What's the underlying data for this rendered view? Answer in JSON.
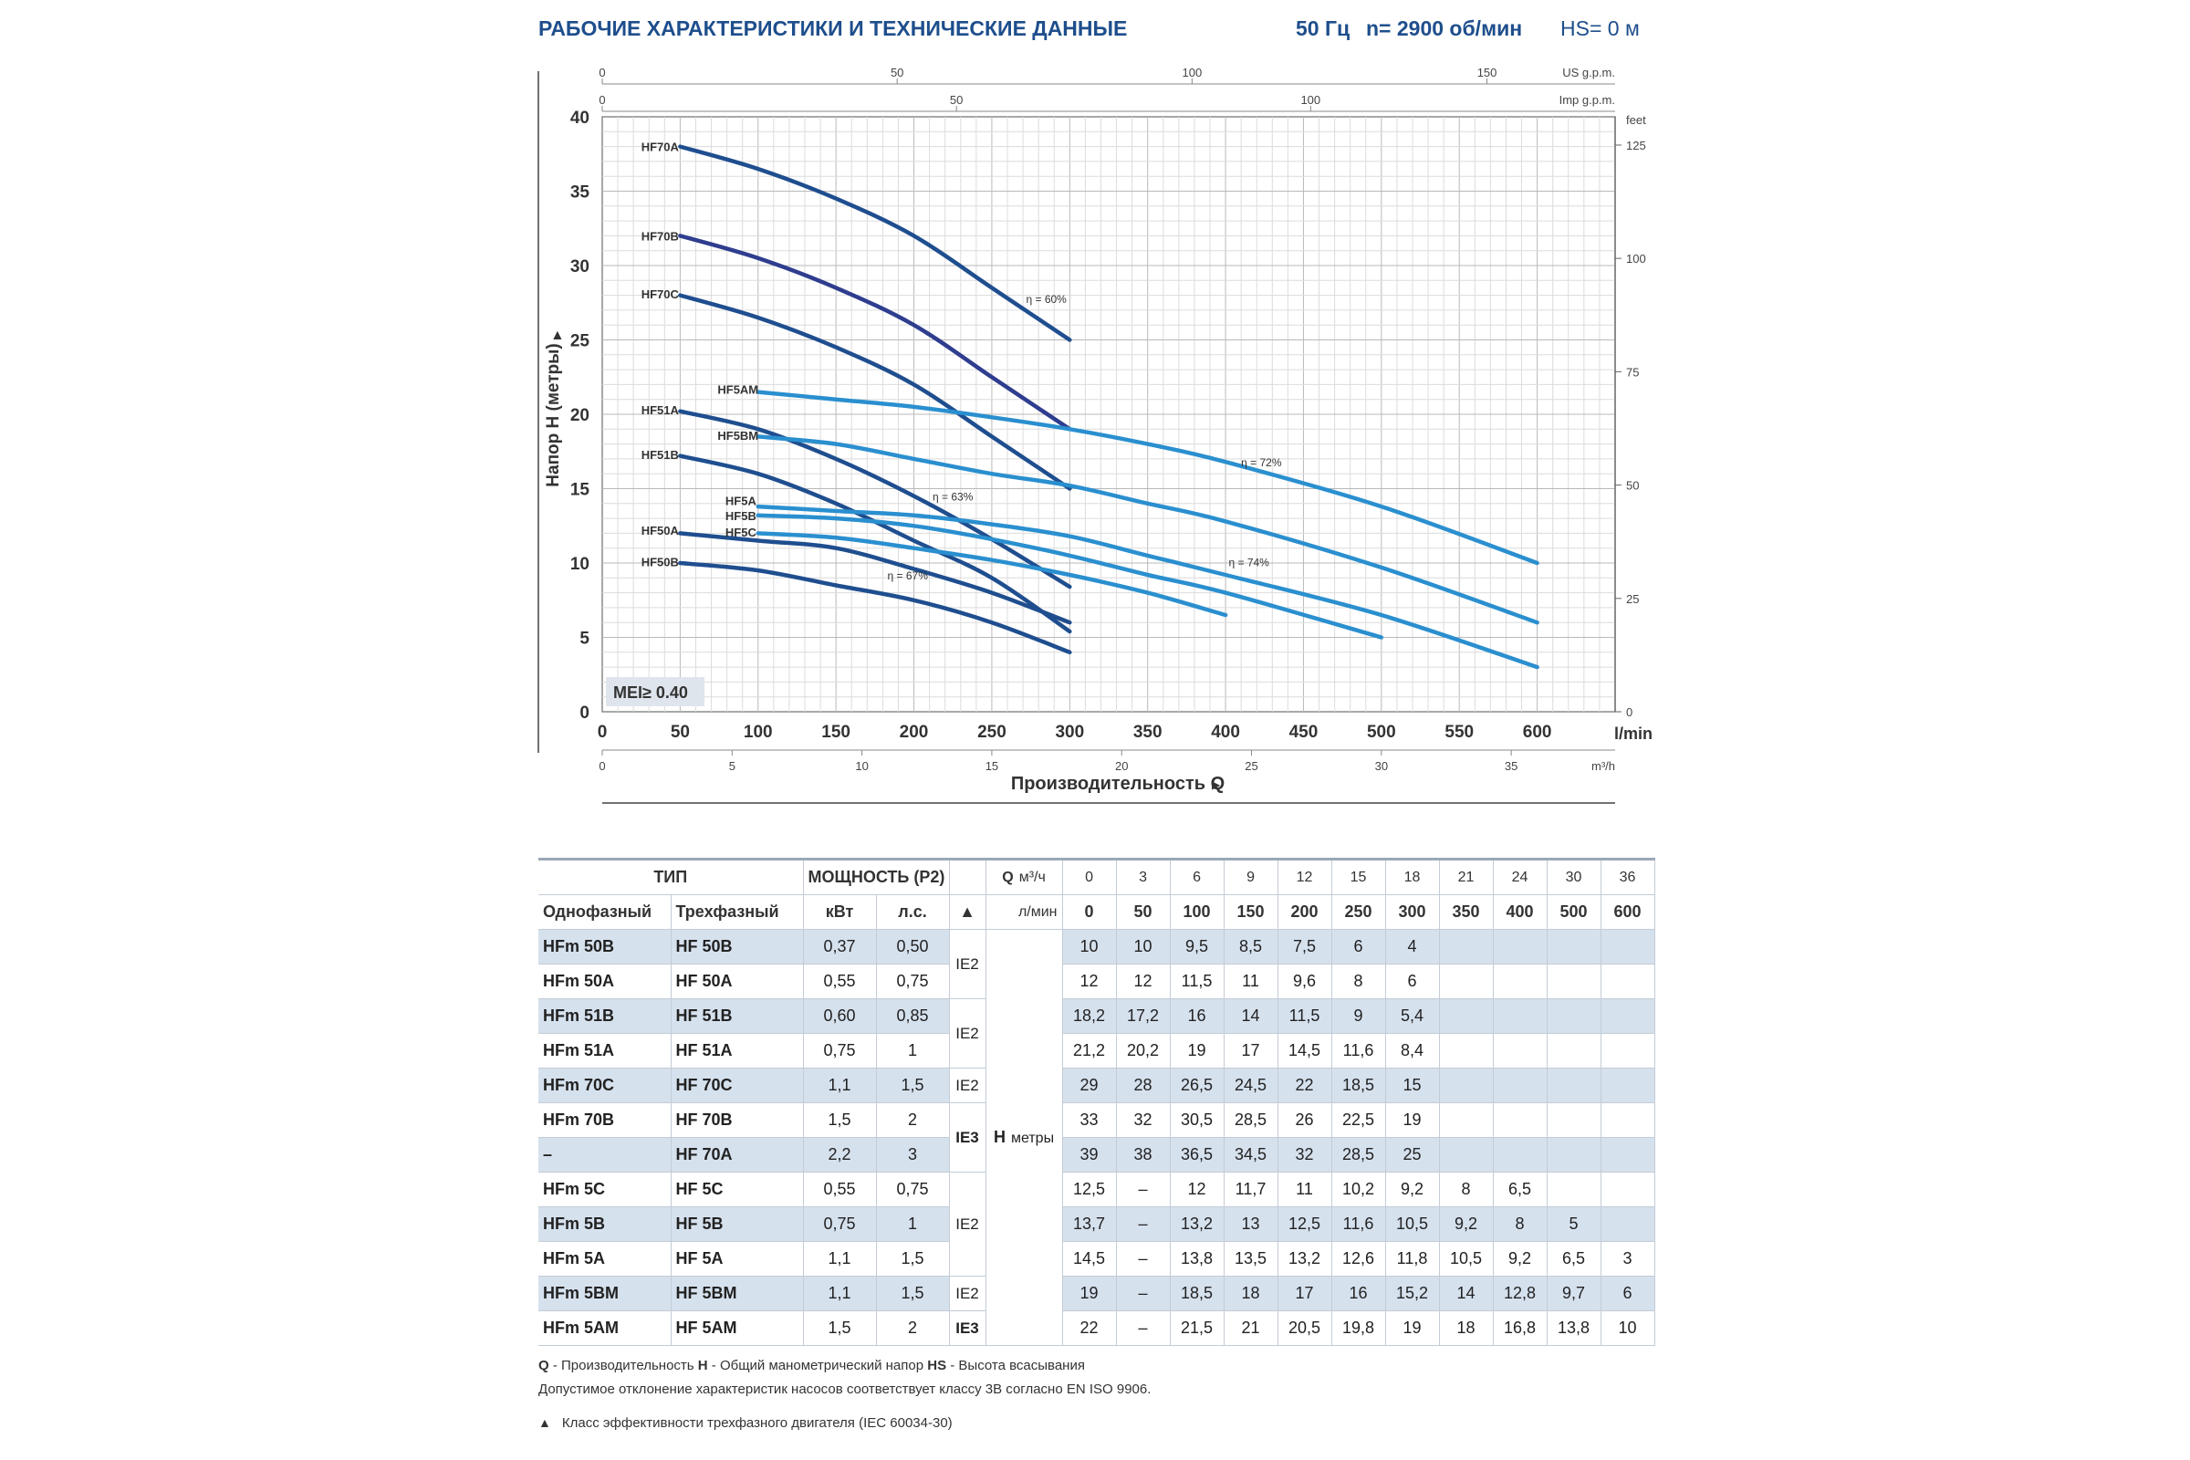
{
  "header": {
    "title": "РАБОЧИЕ ХАРАКТЕРИСТИКИ И ТЕХНИЧЕСКИЕ ДАННЫЕ",
    "freq": "50 Гц",
    "rpm": "n= 2900 об/мин",
    "hs": "HS= 0 м"
  },
  "chart_data": {
    "type": "line",
    "ylabel": "Напор H (метры)",
    "xlabel": "Производительность Q",
    "xlim": [
      0,
      650
    ],
    "ylim": [
      0,
      40
    ],
    "x_unit": "l/min",
    "x_ticks": [
      0,
      50,
      100,
      150,
      200,
      250,
      300,
      350,
      400,
      450,
      500,
      550,
      600
    ],
    "y_ticks": [
      0,
      5,
      10,
      15,
      20,
      25,
      30,
      35,
      40
    ],
    "secondary_axes": {
      "us_gpm": {
        "unit": "US g.p.m.",
        "ticks": [
          0,
          50,
          100,
          150
        ]
      },
      "imp_gpm": {
        "unit": "Imp g.p.m.",
        "ticks": [
          0,
          50,
          100
        ]
      },
      "m3h": {
        "unit": "m³/h",
        "ticks": [
          0,
          5,
          10,
          15,
          20,
          25,
          30,
          35
        ]
      },
      "feet": {
        "unit": "feet",
        "ticks": [
          0,
          25,
          50,
          75,
          100,
          125
        ]
      }
    },
    "mei_label": "MEI≥ 0.40",
    "grid": true,
    "series": [
      {
        "name": "HF70A",
        "color": "#1f4e8f",
        "x": [
          50,
          100,
          150,
          200,
          250,
          300
        ],
        "y": [
          38,
          36.5,
          34.5,
          32,
          28.5,
          25
        ]
      },
      {
        "name": "HF70B",
        "color": "#2e3d8e",
        "x": [
          50,
          100,
          150,
          200,
          250,
          300
        ],
        "y": [
          32,
          30.5,
          28.5,
          26,
          22.5,
          19
        ]
      },
      {
        "name": "HF70C",
        "color": "#1f4e8f",
        "x": [
          50,
          100,
          150,
          200,
          250,
          300
        ],
        "y": [
          28,
          26.5,
          24.5,
          22,
          18.5,
          15
        ]
      },
      {
        "name": "HF51A",
        "color": "#1f4e8f",
        "x": [
          50,
          100,
          150,
          200,
          250,
          300
        ],
        "y": [
          20.2,
          19,
          17,
          14.5,
          11.6,
          8.4
        ]
      },
      {
        "name": "HF51B",
        "color": "#1f4e8f",
        "x": [
          50,
          100,
          150,
          200,
          250,
          300
        ],
        "y": [
          17.2,
          16,
          14,
          11.5,
          9,
          5.4
        ]
      },
      {
        "name": "HF50A",
        "color": "#1f4e8f",
        "x": [
          50,
          100,
          150,
          200,
          250,
          300
        ],
        "y": [
          12,
          11.5,
          11,
          9.6,
          8,
          6
        ]
      },
      {
        "name": "HF50B",
        "color": "#1f4e8f",
        "x": [
          50,
          100,
          150,
          200,
          250,
          300
        ],
        "y": [
          10,
          9.5,
          8.5,
          7.5,
          6,
          4
        ]
      },
      {
        "name": "HF5AM",
        "color": "#2a8fcf",
        "x": [
          100,
          150,
          200,
          250,
          300,
          350,
          400,
          500,
          600
        ],
        "y": [
          21.5,
          21,
          20.5,
          19.8,
          19,
          18,
          16.8,
          13.8,
          10
        ]
      },
      {
        "name": "HF5BM",
        "color": "#2a8fcf",
        "x": [
          100,
          150,
          200,
          250,
          300,
          350,
          400,
          500,
          600
        ],
        "y": [
          18.5,
          18,
          17,
          16,
          15.2,
          14,
          12.8,
          9.7,
          6
        ]
      },
      {
        "name": "HF5A",
        "color": "#2a8fcf",
        "x": [
          100,
          150,
          200,
          250,
          300,
          350,
          400,
          500,
          600
        ],
        "y": [
          13.8,
          13.5,
          13.2,
          12.6,
          11.8,
          10.5,
          9.2,
          6.5,
          3
        ]
      },
      {
        "name": "HF5B",
        "color": "#2a8fcf",
        "x": [
          100,
          150,
          200,
          250,
          300,
          350,
          400,
          500
        ],
        "y": [
          13.2,
          13,
          12.5,
          11.6,
          10.5,
          9.2,
          8,
          5
        ]
      },
      {
        "name": "HF5C",
        "color": "#2a8fcf",
        "x": [
          100,
          150,
          200,
          250,
          300,
          350,
          400
        ],
        "y": [
          12,
          11.7,
          11,
          10.2,
          9.2,
          8,
          6.5
        ]
      }
    ],
    "series_label_points": [
      {
        "name": "HF70A",
        "x": 25,
        "y": 38
      },
      {
        "name": "HF70B",
        "x": 25,
        "y": 32
      },
      {
        "name": "HF70C",
        "x": 25,
        "y": 28.1
      },
      {
        "name": "HF51A",
        "x": 25,
        "y": 20.3
      },
      {
        "name": "HF51B",
        "x": 25,
        "y": 17.3
      },
      {
        "name": "HF50A",
        "x": 25,
        "y": 12.2
      },
      {
        "name": "HF50B",
        "x": 25,
        "y": 10.1
      },
      {
        "name": "HF5AM",
        "x": 74,
        "y": 21.7
      },
      {
        "name": "HF5BM",
        "x": 74,
        "y": 18.6
      },
      {
        "name": "HF5A",
        "x": 79,
        "y": 14.2
      },
      {
        "name": "HF5B",
        "x": 79,
        "y": 13.2
      },
      {
        "name": "HF5C",
        "x": 79,
        "y": 12.1
      }
    ],
    "annotations": [
      {
        "text": "η = 60%",
        "x": 272,
        "y": 27.5
      },
      {
        "text": "η = 72%",
        "x": 410,
        "y": 16.5
      },
      {
        "text": "η = 63%",
        "x": 212,
        "y": 14.2
      },
      {
        "text": "η = 74%",
        "x": 402,
        "y": 9.8
      },
      {
        "text": "η = 67%",
        "x": 183,
        "y": 8.9
      }
    ]
  },
  "table": {
    "head": {
      "type": "ТИП",
      "power": "МОЩНОСТЬ (P2)",
      "single": "Однофазный",
      "three": "Трехфазный",
      "kw": "кВт",
      "hp": "л.с.",
      "tri": "▲",
      "q": "Q",
      "m3h": "м³/ч",
      "lmin": "л/мин",
      "m3h_vals": [
        "0",
        "3",
        "6",
        "9",
        "12",
        "15",
        "18",
        "21",
        "24",
        "30",
        "36"
      ],
      "lmin_vals": [
        "0",
        "50",
        "100",
        "150",
        "200",
        "250",
        "300",
        "350",
        "400",
        "500",
        "600"
      ]
    },
    "h_label": "H",
    "h_unit": "метры",
    "rows": [
      {
        "single": "HFm 50B",
        "three": "HF 50B",
        "kw": "0,37",
        "hp": "0,50",
        "h": [
          "10",
          "10",
          "9,5",
          "8,5",
          "7,5",
          "6",
          "4",
          "",
          "",
          "",
          ""
        ]
      },
      {
        "single": "HFm 50A",
        "three": "HF 50A",
        "kw": "0,55",
        "hp": "0,75",
        "h": [
          "12",
          "12",
          "11,5",
          "11",
          "9,6",
          "8",
          "6",
          "",
          "",
          "",
          ""
        ]
      },
      {
        "single": "HFm 51B",
        "three": "HF 51B",
        "kw": "0,60",
        "hp": "0,85",
        "h": [
          "18,2",
          "17,2",
          "16",
          "14",
          "11,5",
          "9",
          "5,4",
          "",
          "",
          "",
          ""
        ]
      },
      {
        "single": "HFm 51A",
        "three": "HF 51A",
        "kw": "0,75",
        "hp": "1",
        "h": [
          "21,2",
          "20,2",
          "19",
          "17",
          "14,5",
          "11,6",
          "8,4",
          "",
          "",
          "",
          ""
        ]
      },
      {
        "single": "HFm 70C",
        "three": "HF 70C",
        "kw": "1,1",
        "hp": "1,5",
        "h": [
          "29",
          "28",
          "26,5",
          "24,5",
          "22",
          "18,5",
          "15",
          "",
          "",
          "",
          ""
        ]
      },
      {
        "single": "HFm 70B",
        "three": "HF 70B",
        "kw": "1,5",
        "hp": "2",
        "h": [
          "33",
          "32",
          "30,5",
          "28,5",
          "26",
          "22,5",
          "19",
          "",
          "",
          "",
          ""
        ]
      },
      {
        "single": "–",
        "three": "HF 70A",
        "kw": "2,2",
        "hp": "3",
        "h": [
          "39",
          "38",
          "36,5",
          "34,5",
          "32",
          "28,5",
          "25",
          "",
          "",
          "",
          ""
        ]
      },
      {
        "single": "HFm 5C",
        "three": "HF 5C",
        "kw": "0,55",
        "hp": "0,75",
        "h": [
          "12,5",
          "–",
          "12",
          "11,7",
          "11",
          "10,2",
          "9,2",
          "8",
          "6,5",
          "",
          ""
        ]
      },
      {
        "single": "HFm 5B",
        "three": "HF 5B",
        "kw": "0,75",
        "hp": "1",
        "h": [
          "13,7",
          "–",
          "13,2",
          "13",
          "12,5",
          "11,6",
          "10,5",
          "9,2",
          "8",
          "5",
          ""
        ]
      },
      {
        "single": "HFm 5A",
        "three": "HF 5A",
        "kw": "1,1",
        "hp": "1,5",
        "h": [
          "14,5",
          "–",
          "13,8",
          "13,5",
          "13,2",
          "12,6",
          "11,8",
          "10,5",
          "9,2",
          "6,5",
          "3"
        ]
      },
      {
        "single": "HFm 5BM",
        "three": "HF 5BM",
        "kw": "1,1",
        "hp": "1,5",
        "h": [
          "19",
          "–",
          "18,5",
          "18",
          "17",
          "16",
          "15,2",
          "14",
          "12,8",
          "9,7",
          "6"
        ]
      },
      {
        "single": "HFm 5AM",
        "three": "HF 5AM",
        "kw": "1,5",
        "hp": "2",
        "h": [
          "22",
          "–",
          "21,5",
          "21",
          "20,5",
          "19,8",
          "19",
          "18",
          "16,8",
          "13,8",
          "10"
        ]
      }
    ],
    "ie": [
      {
        "text": "IE2",
        "bold": false,
        "start": 0,
        "span": 2
      },
      {
        "text": "IE2",
        "bold": false,
        "start": 2,
        "span": 2
      },
      {
        "text": "IE2",
        "bold": false,
        "start": 4,
        "span": 1
      },
      {
        "text": "IE3",
        "bold": true,
        "start": 5,
        "span": 2
      },
      {
        "text": "IE2",
        "bold": false,
        "start": 7,
        "span": 3
      },
      {
        "text": "IE2",
        "bold": false,
        "start": 10,
        "span": 1
      },
      {
        "text": "IE3",
        "bold": true,
        "start": 11,
        "span": 1
      }
    ]
  },
  "notes": {
    "line1_q": "Q",
    "line1_q_text": " - Производительность ",
    "line1_h": "H",
    "line1_h_text": " - Общий манометрический напор ",
    "line1_hs": "HS",
    "line1_hs_text": " - Высота всасывания",
    "line2": "Допустимое отклонение характеристик насосов соответствует классу 3В согласно EN ISO 9906.",
    "tri": "▲",
    "line3": "Класс эффективности трехфазного двигателя (IEC 60034-30)"
  }
}
